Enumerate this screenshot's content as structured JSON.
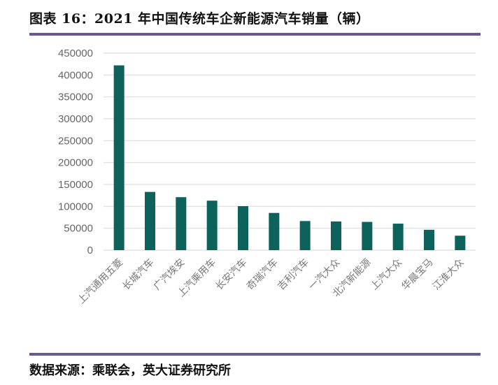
{
  "header": {
    "title": "图表 16：2021 年中国传统车企新能源汽车销量（辆）"
  },
  "footer": {
    "source": "数据来源：乘联会，英大证券研究所"
  },
  "colors": {
    "bar": "#0e625c",
    "grid": "#e3e3e3",
    "rule": "#6a5a8c"
  },
  "chart_data": {
    "type": "bar",
    "title": "2021 年中国传统车企新能源汽车销量（辆）",
    "xlabel": "",
    "ylabel": "",
    "ylim": [
      0,
      450000
    ],
    "yticks": [
      "0",
      "50000",
      "100000",
      "150000",
      "200000",
      "250000",
      "300000",
      "350000",
      "400000",
      "450000"
    ],
    "grid": true,
    "categories": [
      "上汽通用五菱",
      "长城汽车",
      "广汽埃安",
      "上汽乘用车",
      "长安汽车",
      "奇瑞汽车",
      "吉利汽车",
      "一汽大众",
      "北汽新能源",
      "上汽大众",
      "华晨宝马",
      "江淮大众"
    ],
    "values": [
      422000,
      133000,
      121000,
      113000,
      100500,
      85000,
      66500,
      65500,
      64500,
      60500,
      46500,
      33000
    ]
  }
}
